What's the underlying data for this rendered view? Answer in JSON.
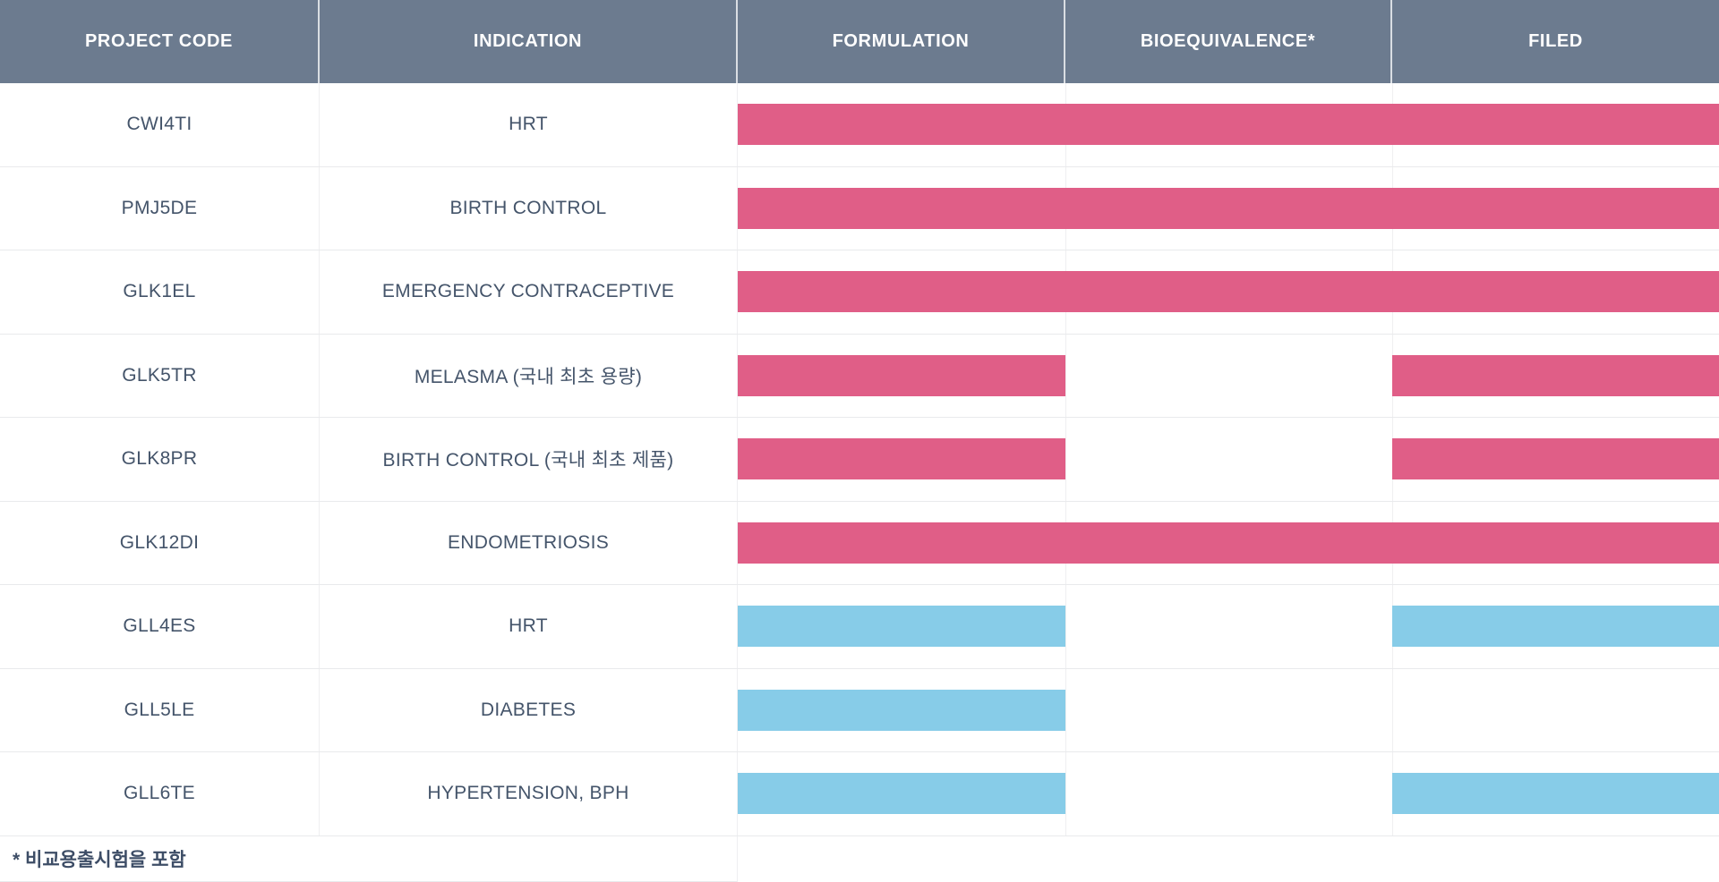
{
  "colors": {
    "pink": "#E05E87",
    "blue": "#87CCE8",
    "header_bg": "#6C7B8F",
    "header_text": "#FFFFFF",
    "body_text": "#44546A",
    "footnote_text": "#3D4D66",
    "row_border": "#E9EAEC",
    "col_divider": "#EFEFF1"
  },
  "chart_data": {
    "type": "table",
    "columns": [
      {
        "key": "project_code",
        "label": "PROJECT CODE"
      },
      {
        "key": "indication",
        "label": "INDICATION"
      },
      {
        "key": "formulation",
        "label": "FORMULATION"
      },
      {
        "key": "bioequivalence",
        "label": "BIOEQUIVALENCE*"
      },
      {
        "key": "filed",
        "label": "FILED"
      }
    ],
    "stage_order": [
      "formulation",
      "bioequivalence",
      "filed"
    ],
    "rows": [
      {
        "project_code": "CWI4TI",
        "indication": "HRT",
        "color": "pink",
        "stages": {
          "formulation": true,
          "bioequivalence": true,
          "filed": true
        }
      },
      {
        "project_code": "PMJ5DE",
        "indication": "BIRTH CONTROL",
        "color": "pink",
        "stages": {
          "formulation": true,
          "bioequivalence": true,
          "filed": true
        }
      },
      {
        "project_code": "GLK1EL",
        "indication": "EMERGENCY CONTRACEPTIVE",
        "color": "pink",
        "stages": {
          "formulation": true,
          "bioequivalence": true,
          "filed": true
        }
      },
      {
        "project_code": "GLK5TR",
        "indication": "MELASMA (국내 최초 용량)",
        "color": "pink",
        "stages": {
          "formulation": true,
          "bioequivalence": false,
          "filed": true
        }
      },
      {
        "project_code": "GLK8PR",
        "indication": "BIRTH CONTROL (국내 최초 제품)",
        "color": "pink",
        "stages": {
          "formulation": true,
          "bioequivalence": false,
          "filed": true
        }
      },
      {
        "project_code": "GLK12DI",
        "indication": "ENDOMETRIOSIS",
        "color": "pink",
        "stages": {
          "formulation": true,
          "bioequivalence": true,
          "filed": true
        }
      },
      {
        "project_code": "GLL4ES",
        "indication": "HRT",
        "color": "blue",
        "stages": {
          "formulation": true,
          "bioequivalence": false,
          "filed": true
        }
      },
      {
        "project_code": "GLL5LE",
        "indication": "DIABETES",
        "color": "blue",
        "stages": {
          "formulation": true,
          "bioequivalence": false,
          "filed": false
        }
      },
      {
        "project_code": "GLL6TE",
        "indication": "HYPERTENSION, BPH",
        "color": "blue",
        "stages": {
          "formulation": true,
          "bioequivalence": false,
          "filed": true
        }
      }
    ],
    "footnote": "* 비교용출시험을 포함"
  }
}
